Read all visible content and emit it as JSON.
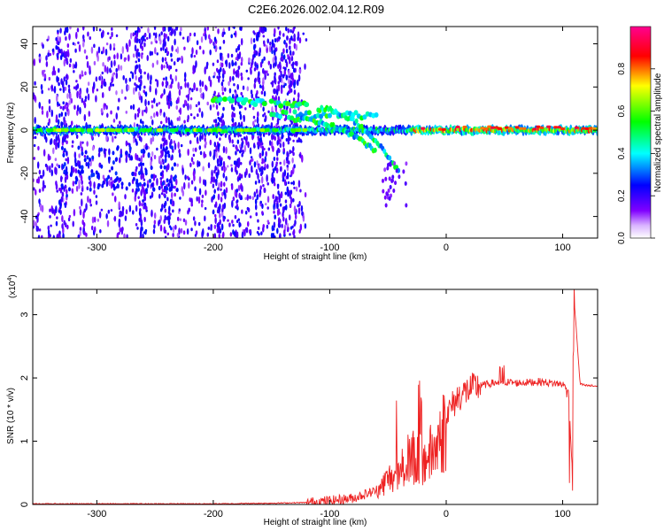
{
  "title": "C2E6.2026.002.04.12.R09",
  "chart_data": [
    {
      "type": "heatmap",
      "xlabel": "Height of straight line (km)",
      "ylabel": "Frequency (Hz)",
      "xlim": [
        -355,
        130
      ],
      "ylim": [
        -50,
        48
      ],
      "xticks": [
        -300,
        -200,
        -100,
        0,
        100
      ],
      "yticks": [
        -40,
        -20,
        0,
        20,
        40
      ],
      "xtick_labels": [
        "-300",
        "-200",
        "-100",
        "0",
        "100"
      ],
      "ytick_labels": [
        "-40",
        "-20",
        "0",
        "20",
        "40"
      ],
      "colorbar": {
        "label": "Normalized spectral amplitude",
        "range": [
          0,
          1
        ],
        "ticks": [
          "0.0",
          "0.2",
          "0.4",
          "0.6",
          "0.8"
        ],
        "colors": [
          "#ffffff",
          "#7a00ff",
          "#0000ff",
          "#00ffff",
          "#00ff00",
          "#ffff00",
          "#ff0000",
          "#ff00aa"
        ]
      },
      "features": {
        "main_band": {
          "x": [
            -355,
            130
          ],
          "y": 0,
          "note_values": "amplitude mostly 0.3-0.9"
        },
        "noise_region": {
          "x": [
            -355,
            -120
          ],
          "y": [
            -50,
            48
          ]
        },
        "upper_band": {
          "x": [
            -200,
            -120
          ],
          "y": 14
        },
        "descending_branches": [
          {
            "x": [
              -130,
              -60
            ],
            "y_start": 5,
            "y_end": -10
          },
          {
            "x": [
              -110,
              -40
            ],
            "y_start": 10,
            "y_end": -20
          }
        ]
      }
    },
    {
      "type": "line",
      "xlabel": "Height of straight line (km)",
      "ylabel": "SNR (10 * v/v)",
      "y_multiplier": "(x10",
      "y_multiplier_exp": "4",
      "y_multiplier_close": ")",
      "xlim": [
        -355,
        130
      ],
      "ylim": [
        0,
        3.4
      ],
      "xticks": [
        -300,
        -200,
        -100,
        0,
        100
      ],
      "yticks": [
        0,
        1,
        2,
        3
      ],
      "xtick_labels": [
        "-300",
        "-200",
        "-100",
        "0",
        "100"
      ],
      "ytick_labels": [
        "0",
        "1",
        "2",
        "3"
      ],
      "series": [
        {
          "color": "#ee2222",
          "x": [
            -355,
            -300,
            -250,
            -200,
            -150,
            -120,
            -100,
            -80,
            -60,
            -50,
            -40,
            -30,
            -20,
            -10,
            0,
            10,
            20,
            30,
            40,
            50,
            60,
            70,
            80,
            90,
            100,
            105,
            108,
            110,
            115,
            120,
            130
          ],
          "y": [
            0.01,
            0.01,
            0.01,
            0.01,
            0.02,
            0.03,
            0.06,
            0.1,
            0.22,
            0.45,
            0.6,
            0.85,
            0.75,
            0.95,
            1.4,
            1.7,
            1.82,
            1.88,
            1.92,
            1.94,
            1.92,
            1.93,
            1.94,
            1.92,
            1.9,
            1.8,
            0.6,
            3.2,
            1.9,
            1.88,
            1.87
          ]
        }
      ]
    }
  ]
}
